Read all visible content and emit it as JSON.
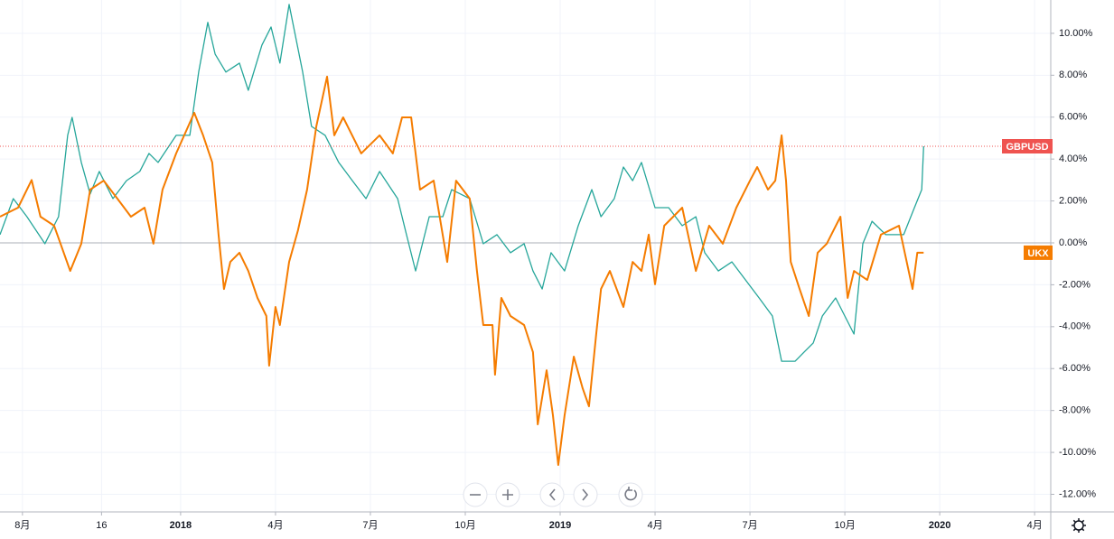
{
  "chart_data": {
    "type": "line",
    "xlim": [
      6.29,
      39.51
    ],
    "xticks": [
      {
        "value": 7,
        "label": "8月"
      },
      {
        "value": 9.5,
        "label": "16"
      },
      {
        "value": 12,
        "label": "2018"
      },
      {
        "value": 15,
        "label": "4月"
      },
      {
        "value": 18,
        "label": "7月"
      },
      {
        "value": 21,
        "label": "10月"
      },
      {
        "value": 24,
        "label": "2019"
      },
      {
        "value": 27,
        "label": "4月"
      },
      {
        "value": 30,
        "label": "7月"
      },
      {
        "value": 33,
        "label": "10月"
      },
      {
        "value": 36,
        "label": "2020"
      },
      {
        "value": 39,
        "label": "4月"
      }
    ],
    "ylim": [
      -12.84,
      11.59
    ],
    "yticks": [
      {
        "value": 10,
        "label": "10.00%"
      },
      {
        "value": 8,
        "label": "8.00%"
      },
      {
        "value": 6,
        "label": "6.00%"
      },
      {
        "value": 4,
        "label": "4.00%"
      },
      {
        "value": 2,
        "label": "2.00%"
      },
      {
        "value": 0,
        "label": "0.00%"
      },
      {
        "value": -2,
        "label": "-2.00%"
      },
      {
        "value": -4,
        "label": "-4.00%"
      },
      {
        "value": -6,
        "label": "-6.00%"
      },
      {
        "value": -8,
        "label": "-8.00%"
      },
      {
        "value": -10,
        "label": "-10.00%"
      },
      {
        "value": -12,
        "label": "-12.00%"
      }
    ],
    "grid": true,
    "series": [
      {
        "name": "GBPUSD",
        "color": "#26a69a",
        "tag_color": "#ef5350",
        "x": [
          6.29,
          6.71,
          7.14,
          7.71,
          8.14,
          8.43,
          8.57,
          8.86,
          9.14,
          9.43,
          9.86,
          10.29,
          10.71,
          11.0,
          11.29,
          11.86,
          12.29,
          12.57,
          12.86,
          13.09,
          13.43,
          13.86,
          14.14,
          14.57,
          14.86,
          15.14,
          15.43,
          15.86,
          16.14,
          16.57,
          17.0,
          17.43,
          17.86,
          18.29,
          18.86,
          19.14,
          19.43,
          19.86,
          20.29,
          20.57,
          21.14,
          21.57,
          22.0,
          22.43,
          22.86,
          23.14,
          23.43,
          23.71,
          24.14,
          24.57,
          25.0,
          25.29,
          25.71,
          26.0,
          26.29,
          26.57,
          27.0,
          27.43,
          27.86,
          28.29,
          28.57,
          29.0,
          29.43,
          29.86,
          30.29,
          30.71,
          31.0,
          31.43,
          31.71,
          32.0,
          32.29,
          32.71,
          33.29,
          33.57,
          33.86,
          34.29,
          34.86,
          35.2,
          35.43,
          35.49
        ],
        "values": [
          0.39,
          2.11,
          1.25,
          -0.04,
          1.25,
          5.13,
          5.99,
          3.84,
          2.33,
          3.41,
          2.11,
          2.97,
          3.41,
          4.27,
          3.84,
          5.13,
          5.13,
          8.15,
          10.52,
          9.01,
          8.15,
          8.58,
          7.28,
          9.44,
          10.3,
          8.58,
          11.38,
          8.15,
          5.56,
          5.13,
          3.84,
          2.97,
          2.11,
          3.41,
          2.11,
          0.39,
          -1.34,
          1.25,
          1.25,
          2.54,
          2.11,
          -0.04,
          0.39,
          -0.47,
          -0.04,
          -1.34,
          -2.2,
          -0.47,
          -1.34,
          0.82,
          2.54,
          1.25,
          2.11,
          3.62,
          2.97,
          3.84,
          1.68,
          1.68,
          0.82,
          1.25,
          -0.47,
          -1.34,
          -0.91,
          -1.77,
          -2.63,
          -3.49,
          -5.65,
          -5.65,
          -5.22,
          -4.78,
          -3.49,
          -2.63,
          -4.35,
          -0.04,
          1.03,
          0.39,
          0.39,
          1.68,
          2.54,
          4.61
        ]
      },
      {
        "name": "UKX",
        "color": "#f57c00",
        "tag_color": "#f57c00",
        "x": [
          6.29,
          6.86,
          7.29,
          7.57,
          8.0,
          8.51,
          8.86,
          9.14,
          9.57,
          10.0,
          10.43,
          10.86,
          11.14,
          11.43,
          11.86,
          12.43,
          12.71,
          13.0,
          13.2,
          13.37,
          13.57,
          13.86,
          14.14,
          14.43,
          14.71,
          14.8,
          15.0,
          15.14,
          15.43,
          15.71,
          16.0,
          16.29,
          16.63,
          16.86,
          17.14,
          17.71,
          18.29,
          18.71,
          19.0,
          19.29,
          19.57,
          20.0,
          20.43,
          20.71,
          21.14,
          21.37,
          21.57,
          21.86,
          21.94,
          22.14,
          22.43,
          22.86,
          23.14,
          23.29,
          23.57,
          23.77,
          23.94,
          24.14,
          24.43,
          24.71,
          24.91,
          25.14,
          25.29,
          25.57,
          26.0,
          26.29,
          26.57,
          26.8,
          27.0,
          27.29,
          27.86,
          28.29,
          28.71,
          29.14,
          29.57,
          30.0,
          30.23,
          30.57,
          30.8,
          31.0,
          31.14,
          31.29,
          31.57,
          31.86,
          32.14,
          32.43,
          32.86,
          33.09,
          33.29,
          33.71,
          34.14,
          34.71,
          35.14,
          35.29,
          35.49
        ],
        "values": [
          1.25,
          1.68,
          3.0,
          1.25,
          0.82,
          -1.34,
          -0.04,
          2.54,
          2.97,
          2.11,
          1.25,
          1.68,
          -0.04,
          2.54,
          4.27,
          6.21,
          5.13,
          3.84,
          0.39,
          -2.2,
          -0.91,
          -0.47,
          -1.34,
          -2.63,
          -3.49,
          -5.86,
          -3.06,
          -3.92,
          -0.91,
          0.6,
          2.54,
          5.56,
          7.93,
          5.13,
          5.99,
          4.27,
          5.13,
          4.27,
          5.99,
          5.99,
          2.54,
          2.97,
          -0.91,
          2.97,
          2.11,
          -1.34,
          -3.92,
          -3.92,
          -6.29,
          -2.63,
          -3.49,
          -3.92,
          -5.22,
          -8.66,
          -6.08,
          -8.23,
          -10.6,
          -8.23,
          -5.43,
          -6.94,
          -7.8,
          -4.35,
          -2.2,
          -1.34,
          -3.06,
          -0.91,
          -1.34,
          0.39,
          -1.98,
          0.82,
          1.68,
          -1.34,
          0.82,
          -0.04,
          1.68,
          2.97,
          3.62,
          2.54,
          2.97,
          5.13,
          2.97,
          -0.91,
          -2.2,
          -3.49,
          -0.47,
          -0.04,
          1.25,
          -2.63,
          -1.34,
          -1.77,
          0.39,
          0.82,
          -2.2,
          -0.47,
          -0.47
        ]
      }
    ]
  }
}
